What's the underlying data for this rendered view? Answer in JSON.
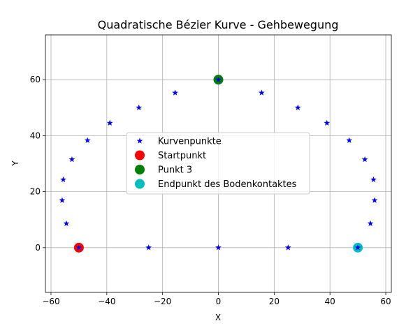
{
  "chart_data": {
    "type": "scatter",
    "title": "Quadratische Bézier Kurve - Gehbewegung",
    "xlabel": "X",
    "ylabel": "Y",
    "xlim": [
      -62,
      62
    ],
    "ylim": [
      -16,
      76
    ],
    "xticks": [
      -60,
      -40,
      -20,
      0,
      20,
      40,
      60
    ],
    "yticks": [
      0,
      20,
      40,
      60
    ],
    "grid": true,
    "legend_position": "center",
    "series": [
      {
        "name": "Kurvenpunkte",
        "marker": "star",
        "color": "#0000ff",
        "points": [
          [
            -50,
            0
          ],
          [
            -54.5,
            8.6
          ],
          [
            -56,
            16.9
          ],
          [
            -55.6,
            24.3
          ],
          [
            -52.5,
            31.5
          ],
          [
            -46.9,
            38.3
          ],
          [
            -38.9,
            44.5
          ],
          [
            -28.5,
            50
          ],
          [
            -15.5,
            55.3
          ],
          [
            0,
            60
          ],
          [
            15.5,
            55.3
          ],
          [
            28.5,
            50
          ],
          [
            38.9,
            44.5
          ],
          [
            46.9,
            38.3
          ],
          [
            52.5,
            31.5
          ],
          [
            55.6,
            24.3
          ],
          [
            56,
            16.9
          ],
          [
            54.5,
            8.6
          ],
          [
            50,
            0
          ],
          [
            25,
            0
          ],
          [
            0,
            0
          ],
          [
            -25,
            0
          ]
        ]
      },
      {
        "name": "Startpunkt",
        "marker": "circle",
        "color": "#ff0000",
        "points": [
          [
            -50,
            0
          ]
        ]
      },
      {
        "name": "Punkt 3",
        "marker": "circle",
        "color": "#008000",
        "points": [
          [
            0,
            60
          ]
        ]
      },
      {
        "name": "Endpunkt des Bodenkontaktes",
        "marker": "circle",
        "color": "#00bfbf",
        "points": [
          [
            50,
            0
          ]
        ]
      }
    ]
  }
}
